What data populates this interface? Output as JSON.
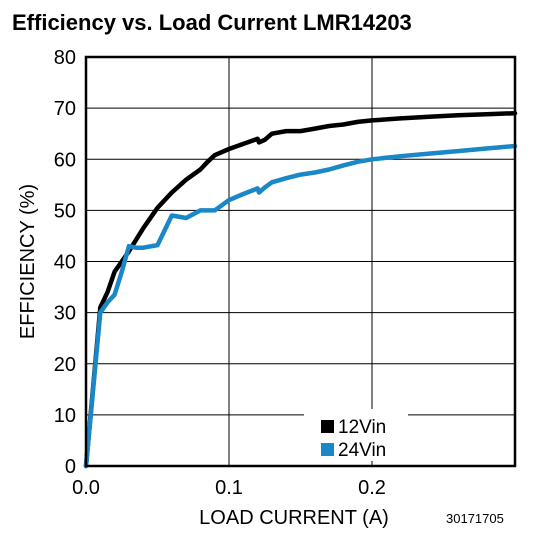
{
  "chart_data": {
    "type": "line",
    "title": "Efficiency vs. Load Current LMR14203",
    "xlabel": "LOAD CURRENT (A)",
    "ylabel": "EFFICIENCY (%)",
    "xlim": [
      0,
      0.3
    ],
    "ylim": [
      0,
      80
    ],
    "x_tick_labels": [
      "0.0",
      "0.1",
      "0.2"
    ],
    "y_tick_labels": [
      "0",
      "10",
      "20",
      "30",
      "40",
      "50",
      "60",
      "70",
      "80"
    ],
    "grid": true,
    "legend_position": "bottom-right",
    "figure_id": "30171705",
    "series": [
      {
        "name": "12Vin",
        "color": "#000000",
        "x": [
          0.0,
          0.01,
          0.015,
          0.02,
          0.025,
          0.03,
          0.04,
          0.05,
          0.06,
          0.07,
          0.08,
          0.085,
          0.09,
          0.1,
          0.11,
          0.12,
          0.121,
          0.125,
          0.13,
          0.14,
          0.15,
          0.16,
          0.17,
          0.18,
          0.19,
          0.2,
          0.22,
          0.24,
          0.26,
          0.28,
          0.3
        ],
        "values": [
          0,
          31,
          34,
          38,
          40,
          42,
          46.5,
          50.5,
          53.5,
          56,
          58,
          59.5,
          60.8,
          62,
          63,
          64,
          63.3,
          63.8,
          65,
          65.5,
          65.5,
          66,
          66.5,
          66.8,
          67.3,
          67.6,
          68,
          68.3,
          68.6,
          68.8,
          69
        ]
      },
      {
        "name": "24Vin",
        "color": "#1a87c6",
        "x": [
          0.0,
          0.01,
          0.015,
          0.02,
          0.025,
          0.03,
          0.035,
          0.04,
          0.05,
          0.06,
          0.07,
          0.08,
          0.09,
          0.1,
          0.11,
          0.12,
          0.121,
          0.125,
          0.13,
          0.14,
          0.15,
          0.16,
          0.17,
          0.18,
          0.19,
          0.2,
          0.22,
          0.24,
          0.26,
          0.28,
          0.3
        ],
        "values": [
          0,
          30,
          32,
          33.5,
          38,
          43,
          42.7,
          42.7,
          43.2,
          49,
          48.5,
          50,
          50,
          52,
          53.2,
          54.3,
          53.5,
          54.5,
          55.5,
          56.3,
          57,
          57.4,
          58,
          58.8,
          59.5,
          60,
          60.6,
          61.1,
          61.6,
          62.1,
          62.6
        ]
      }
    ]
  }
}
